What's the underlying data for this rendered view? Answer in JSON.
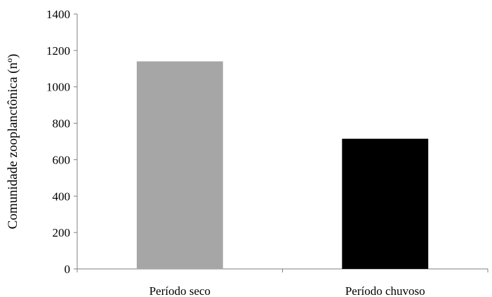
{
  "chart_data": {
    "type": "bar",
    "title": "",
    "xlabel": "",
    "ylabel": "Comunidade zooplanctônica (nº)",
    "categories": [
      "Período seco",
      "Período chuvoso"
    ],
    "values": [
      1140,
      715
    ],
    "bar_colors": [
      "#a6a6a6",
      "#000000"
    ],
    "ylim": [
      0,
      1400
    ],
    "yticks": [
      0,
      200,
      400,
      600,
      800,
      1000,
      1200,
      1400
    ],
    "grid": false,
    "legend": "none"
  }
}
